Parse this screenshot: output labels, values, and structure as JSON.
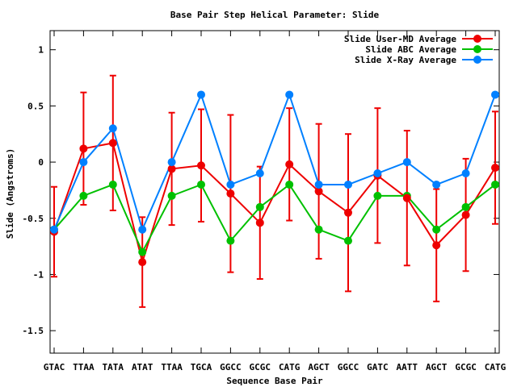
{
  "chart_data": {
    "type": "line",
    "title": "Base Pair Step Helical Parameter: Slide",
    "xlabel": "Sequence Base Pair",
    "ylabel": "Slide (Angstroms)",
    "categories": [
      "GTAC",
      "TTAA",
      "TATA",
      "ATAT",
      "TTAA",
      "TGCA",
      "GGCC",
      "GCGC",
      "CATG",
      "AGCT",
      "GGCC",
      "GATC",
      "AATT",
      "AGCT",
      "GCGC",
      "CATG"
    ],
    "ylim": [
      -1.7,
      1.17
    ],
    "yticks": [
      -1.5,
      -1,
      -0.5,
      0,
      0.5,
      1
    ],
    "ytick_labels": [
      "-1.5",
      "-1",
      "-0.5",
      "0",
      "0.5",
      "1"
    ],
    "legend_position": "top-right",
    "grid": false,
    "series": [
      {
        "name": "Slide User-MD Average",
        "color": "#ee0000",
        "values": [
          -0.62,
          0.12,
          0.17,
          -0.89,
          -0.06,
          -0.03,
          -0.28,
          -0.54,
          -0.02,
          -0.26,
          -0.45,
          -0.12,
          -0.32,
          -0.74,
          -0.47,
          -0.05
        ],
        "error": [
          0.4,
          0.5,
          0.6,
          0.4,
          0.5,
          0.5,
          0.7,
          0.5,
          0.5,
          0.6,
          0.7,
          0.6,
          0.6,
          0.5,
          0.5,
          0.5
        ]
      },
      {
        "name": "Slide ABC Average",
        "color": "#00c000",
        "values": [
          -0.6,
          -0.3,
          -0.2,
          -0.8,
          -0.3,
          -0.2,
          -0.7,
          -0.4,
          -0.2,
          -0.6,
          -0.7,
          -0.3,
          -0.3,
          -0.6,
          -0.4,
          -0.2
        ]
      },
      {
        "name": "Slide X-Ray Average",
        "color": "#0080ff",
        "values": [
          -0.6,
          0.0,
          0.3,
          -0.6,
          0.0,
          0.6,
          -0.2,
          -0.1,
          0.6,
          -0.2,
          -0.2,
          -0.1,
          0.0,
          -0.2,
          -0.1,
          0.6
        ]
      }
    ]
  }
}
